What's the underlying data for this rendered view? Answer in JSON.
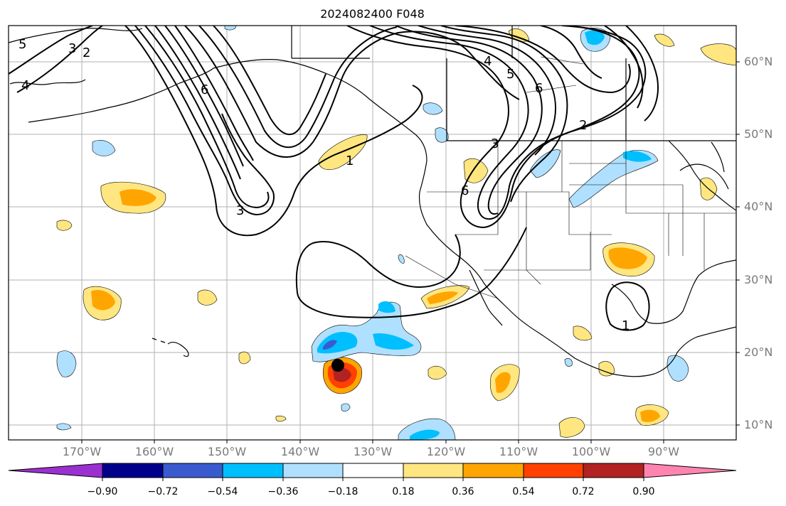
{
  "title": "2024082400 F048",
  "lat_labels": [
    "60°N",
    "50°N",
    "40°N",
    "30°N",
    "20°N",
    "10°N"
  ],
  "lon_labels": [
    "170°W",
    "160°W",
    "150°W",
    "140°W",
    "130°W",
    "120°W",
    "110°W",
    "100°W",
    "90°W"
  ],
  "colorbar": {
    "ticks": [
      "−0.90",
      "−0.72",
      "−0.54",
      "−0.36",
      "−0.18",
      "0.18",
      "0.36",
      "0.54",
      "0.72",
      "0.90"
    ],
    "colors": [
      "#9b30d0",
      "#00008b",
      "#3a5bcf",
      "#00bfff",
      "#b0e0ff",
      "#ffffff",
      "#ffe680",
      "#ffa500",
      "#ff4000",
      "#b22222",
      "#ff85b0"
    ]
  },
  "contour_labels": [
    "5",
    "3",
    "2",
    "4",
    "6",
    "3",
    "1",
    "4",
    "5",
    "6",
    "2",
    "3",
    "6",
    "1"
  ],
  "marker": "storm-center"
}
